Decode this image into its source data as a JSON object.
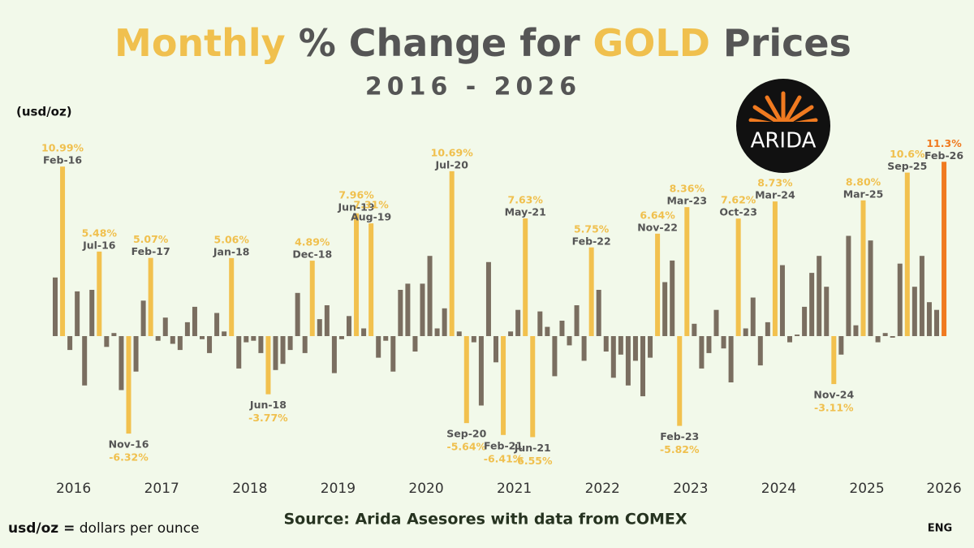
{
  "chart_data": {
    "type": "bar",
    "title_parts": [
      "Monthly",
      "% Change for",
      "GOLD",
      "Prices"
    ],
    "subtitle": "2016 - 2026",
    "unit_label": "(usd/oz)",
    "footnote_key": "usd/oz =",
    "footnote_text": "dollars per ounce",
    "source": "Source: Arida Asesores with data from COMEX",
    "language": "ENG",
    "logo_text": "ARIDA",
    "year_labels": [
      "2016",
      "2017",
      "2018",
      "2019",
      "2020",
      "2021",
      "2022",
      "2023",
      "2024",
      "2025",
      "2026"
    ],
    "color": "#7a6e60",
    "highlight_color": "#f2c14e",
    "latest_color": "#f07a20",
    "ylim": [
      -8,
      12
    ],
    "categories": [
      null,
      "Feb-16",
      null,
      null,
      null,
      null,
      "Jul-16",
      null,
      null,
      null,
      "Nov-16",
      null,
      null,
      "Feb-17",
      null,
      null,
      null,
      null,
      null,
      null,
      null,
      null,
      null,
      null,
      "Jan-18",
      null,
      null,
      null,
      null,
      "Jun-18",
      null,
      null,
      null,
      null,
      null,
      "Dec-18",
      null,
      null,
      null,
      null,
      null,
      "Jun-19",
      null,
      "Aug-19",
      null,
      null,
      null,
      null,
      null,
      null,
      null,
      null,
      null,
      null,
      "Jul-20",
      null,
      "Sep-20",
      null,
      null,
      null,
      null,
      "Feb-21",
      null,
      null,
      "May-21",
      "Jun-21",
      null,
      null,
      null,
      null,
      null,
      null,
      null,
      "Feb-22",
      null,
      null,
      null,
      null,
      null,
      null,
      null,
      null,
      "Nov-22",
      null,
      null,
      "Feb-23",
      "Mar-23",
      null,
      null,
      null,
      null,
      null,
      null,
      "Oct-23",
      null,
      null,
      null,
      null,
      "Mar-24",
      null,
      null,
      null,
      null,
      null,
      null,
      null,
      "Nov-24",
      null,
      null,
      null,
      "Mar-25",
      null,
      null,
      null,
      null,
      null,
      "Sep-25",
      null,
      null,
      null,
      null,
      "Feb-26"
    ],
    "values": [
      3.8,
      10.99,
      -0.9,
      2.9,
      -3.2,
      3.0,
      5.48,
      -0.7,
      0.2,
      -3.5,
      -6.32,
      -2.3,
      2.3,
      5.07,
      -0.3,
      1.2,
      -0.5,
      -0.9,
      0.9,
      1.9,
      -0.2,
      -1.1,
      1.5,
      0.3,
      5.06,
      -2.1,
      -0.4,
      -0.3,
      -1.1,
      -3.77,
      -2.2,
      -1.8,
      -0.9,
      2.8,
      -1.1,
      4.89,
      1.1,
      2.0,
      -2.4,
      -0.2,
      1.3,
      7.96,
      0.5,
      7.31,
      -1.4,
      -0.3,
      -2.3,
      3.0,
      3.4,
      -1.0,
      3.4,
      5.2,
      0.5,
      1.8,
      10.69,
      0.3,
      -5.64,
      -0.4,
      -4.5,
      4.8,
      -1.7,
      -6.41,
      0.3,
      1.7,
      7.63,
      -6.55,
      1.6,
      0.6,
      -2.6,
      1.0,
      -0.6,
      2.0,
      -1.6,
      5.75,
      3.0,
      -1.0,
      -2.7,
      -1.2,
      -3.2,
      -1.6,
      -3.9,
      -1.4,
      6.64,
      3.5,
      4.9,
      -5.82,
      8.36,
      0.8,
      -2.1,
      -1.1,
      1.7,
      -0.8,
      -3.0,
      7.62,
      0.5,
      2.5,
      -1.9,
      0.9,
      8.73,
      4.6,
      -0.4,
      0.1,
      1.9,
      4.1,
      5.2,
      3.2,
      -3.11,
      -1.2,
      6.5,
      0.7,
      8.8,
      6.2,
      -0.4,
      0.2,
      -0.1,
      4.7,
      10.6,
      3.2,
      5.2,
      2.2,
      1.7,
      11.3
    ],
    "value_labels": [
      null,
      "10.99%",
      null,
      null,
      null,
      null,
      "5.48%",
      null,
      null,
      null,
      "-6.32%",
      null,
      null,
      "5.07%",
      null,
      null,
      null,
      null,
      null,
      null,
      null,
      null,
      null,
      null,
      "5.06%",
      null,
      null,
      null,
      null,
      "-3.77%",
      null,
      null,
      null,
      null,
      null,
      "4.89%",
      null,
      null,
      null,
      null,
      null,
      "7.96%",
      null,
      "7.31%",
      null,
      null,
      null,
      null,
      null,
      null,
      null,
      null,
      null,
      null,
      "10.69%",
      null,
      "-5.64%",
      null,
      null,
      null,
      null,
      "-6.41%",
      null,
      null,
      "7.63%",
      "-6.55%",
      null,
      null,
      null,
      null,
      null,
      null,
      null,
      "5.75%",
      null,
      null,
      null,
      null,
      null,
      null,
      null,
      null,
      "6.64%",
      null,
      null,
      "-5.82%",
      "8.36%",
      null,
      null,
      null,
      null,
      null,
      null,
      "7.62%",
      null,
      null,
      null,
      null,
      "8.73%",
      null,
      null,
      null,
      null,
      null,
      null,
      null,
      "-3.11%",
      null,
      null,
      null,
      "8.80%",
      null,
      null,
      null,
      null,
      null,
      "10.6%",
      null,
      null,
      null,
      null,
      "11.3%"
    ]
  }
}
